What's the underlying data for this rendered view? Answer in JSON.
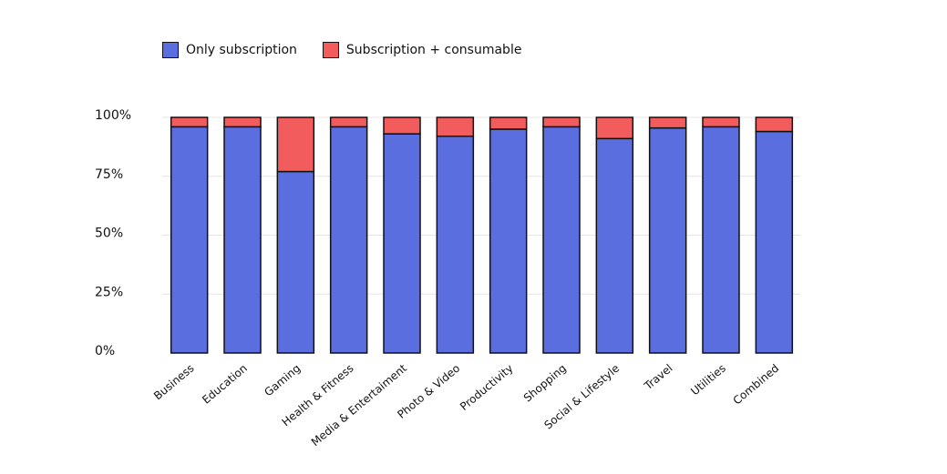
{
  "colors": {
    "series1": "#5b6ee0",
    "series2": "#f25c5c",
    "outline": "#111111",
    "grid": "#e6e6e6",
    "text": "#111111"
  },
  "chart_data": {
    "type": "bar",
    "stacked": true,
    "legend_position": "top-left",
    "grid": true,
    "ylim": [
      0,
      100
    ],
    "yticks": [
      {
        "value": 0,
        "label": "0%"
      },
      {
        "value": 25,
        "label": "25%"
      },
      {
        "value": 50,
        "label": "50%"
      },
      {
        "value": 75,
        "label": "75%"
      },
      {
        "value": 100,
        "label": "100%"
      }
    ],
    "categories": [
      "Business",
      "Education",
      "Gaming",
      "Health & Fitness",
      "Media & Entertaiment",
      "Photo & Video",
      "Productivity",
      "Shopping",
      "Social & Lifestyle",
      "Travel",
      "Utilities",
      "Combined"
    ],
    "series": [
      {
        "name": "Only subscription",
        "values": [
          96,
          96,
          77,
          96,
          93,
          92,
          95,
          96,
          91,
          95.5,
          96,
          94
        ]
      },
      {
        "name": "Subscription + consumable",
        "values": [
          4,
          4,
          23,
          4,
          7,
          8,
          5,
          4,
          9,
          4.5,
          4,
          6
        ]
      }
    ]
  }
}
